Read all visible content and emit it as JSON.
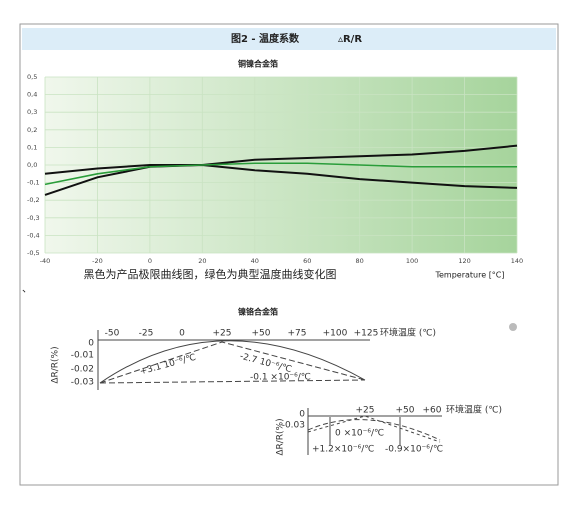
{
  "header": {
    "title": "图2 - 温度系数",
    "symbol": "▵R/R"
  },
  "chart_data": {
    "type": "line",
    "title": "铜镍合金箔",
    "x": [
      -40,
      -20,
      0,
      20,
      40,
      60,
      80,
      100,
      120,
      140
    ],
    "series": [
      {
        "color": "#111111",
        "values": [
          -0.05,
          -0.02,
          0.0,
          0,
          0.03,
          0.04,
          0.05,
          0.06,
          0.08,
          0.11
        ]
      },
      {
        "color": "#111111",
        "values": [
          -0.17,
          -0.07,
          -0.01,
          0,
          -0.03,
          -0.05,
          -0.08,
          -0.1,
          -0.12,
          -0.13
        ]
      },
      {
        "color": "#2a9d3a",
        "values": [
          -0.11,
          -0.05,
          -0.01,
          0,
          0.01,
          0.01,
          0,
          -0.01,
          -0.01,
          -0.01
        ]
      }
    ],
    "xlim": [
      -40,
      140
    ],
    "ylim": [
      -0.5,
      0.5
    ],
    "xticks": [
      -40,
      -20,
      0,
      20,
      40,
      60,
      80,
      100,
      120,
      140
    ],
    "yticks": [
      {
        "value": -0.5,
        "label": "-0,5"
      },
      {
        "value": -0.4,
        "label": "-0,4"
      },
      {
        "value": -0.3,
        "label": "-0,3"
      },
      {
        "value": -0.2,
        "label": "-0,2"
      },
      {
        "value": -0.1,
        "label": "-0,1"
      },
      {
        "value": 0,
        "label": "0,0"
      },
      {
        "value": 0.1,
        "label": "0,1"
      },
      {
        "value": 0.2,
        "label": "0,2"
      },
      {
        "value": 0.3,
        "label": "0,3"
      },
      {
        "value": 0.4,
        "label": "0,4"
      },
      {
        "value": 0.5,
        "label": "0,5"
      }
    ],
    "grid": true,
    "caption": "黑色为产品极限曲线图，绿色为典型温度曲线变化图",
    "x_label": "Temperature [°C]"
  },
  "stray_mark": "、",
  "diagram": {
    "title": "镍铬合金箔",
    "panel1": {
      "x_ticks": [
        "-50",
        "-25",
        "0",
        "+25",
        "+50",
        "+75",
        "+100",
        "+125"
      ],
      "axis_label": "环境温度 (℃)",
      "y_ticks": [
        "0",
        "-0.01",
        "-0.02",
        "-0.03"
      ],
      "y_label": "ΔR/R(%)",
      "annotations": [
        "+3.1 10⁻⁶/℃",
        "-2.7 10⁻⁶/℃",
        "-0.1 ×10⁻⁶/℃"
      ]
    },
    "panel2": {
      "x_ticks": [
        "+25",
        "+50",
        "+60"
      ],
      "axis_label": "环境温度 (℃)",
      "y_ticks": [
        "0",
        "-0.03"
      ],
      "y_label": "ΔR/R(%)",
      "annotations": [
        "0 ×10⁻⁶/℃",
        "+1.2×10⁻⁶/℃",
        "-0.9×10⁻⁶/℃"
      ]
    }
  }
}
